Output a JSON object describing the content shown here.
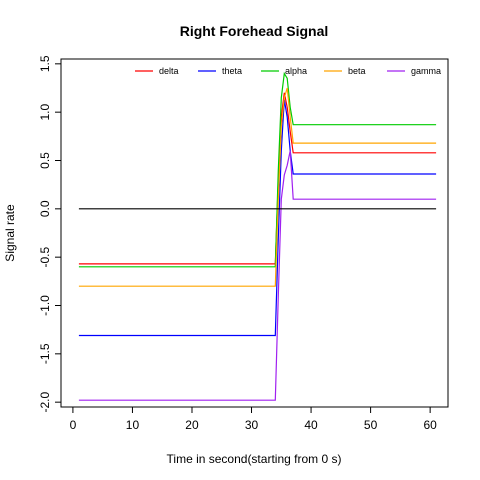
{
  "chart_data": {
    "type": "line",
    "title": "Right Forehead Signal",
    "xlabel": "Time in second(starting from 0 s)",
    "ylabel": "Signal rate",
    "xlim": [
      -2,
      63
    ],
    "ylim": [
      -2.05,
      1.55
    ],
    "xticks": [
      0,
      10,
      20,
      30,
      40,
      50,
      60
    ],
    "yticks": [
      -2.0,
      -1.5,
      -1.0,
      -0.5,
      0.0,
      0.5,
      1.0,
      1.5
    ],
    "ytick_labels": [
      "-2.0",
      "-1.5",
      "-1.0",
      "-0.5",
      "0.0",
      "0.5",
      "1.0",
      "1.5"
    ],
    "grid": false,
    "legend_position": "top",
    "series": [
      {
        "name": "delta",
        "color": "#ff0000",
        "x": [
          1,
          34,
          34.5,
          35,
          35.5,
          36,
          36.5,
          37,
          61
        ],
        "y": [
          -0.57,
          -0.57,
          0.3,
          0.95,
          1.2,
          1.05,
          0.8,
          0.58,
          0.58
        ]
      },
      {
        "name": "theta",
        "color": "#0000ff",
        "x": [
          1,
          34,
          34.5,
          35,
          35.5,
          36,
          36.5,
          37,
          61
        ],
        "y": [
          -1.31,
          -1.31,
          -0.3,
          0.6,
          1.13,
          0.95,
          0.6,
          0.36,
          0.36
        ]
      },
      {
        "name": "alpha",
        "color": "#00cc00",
        "x": [
          1,
          34,
          34.5,
          35,
          35.5,
          36,
          36.5,
          37,
          61
        ],
        "y": [
          -0.6,
          -0.6,
          0.4,
          1.15,
          1.4,
          1.35,
          1.05,
          0.87,
          0.87
        ]
      },
      {
        "name": "beta",
        "color": "#ffa500",
        "x": [
          1,
          34,
          34.5,
          35,
          35.5,
          36,
          36.5,
          37,
          61
        ],
        "y": [
          -0.8,
          -0.8,
          0.1,
          0.85,
          1.15,
          1.25,
          0.95,
          0.68,
          0.68
        ]
      },
      {
        "name": "gamma",
        "color": "#a020f0",
        "x": [
          1,
          34,
          34.5,
          35,
          35.5,
          36,
          36.5,
          37,
          61
        ],
        "y": [
          -1.98,
          -1.98,
          -0.9,
          0.1,
          0.35,
          0.45,
          0.6,
          0.1,
          0.1
        ]
      },
      {
        "name": "",
        "color": "#000000",
        "x": [
          1,
          61
        ],
        "y": [
          0,
          0
        ]
      }
    ]
  }
}
